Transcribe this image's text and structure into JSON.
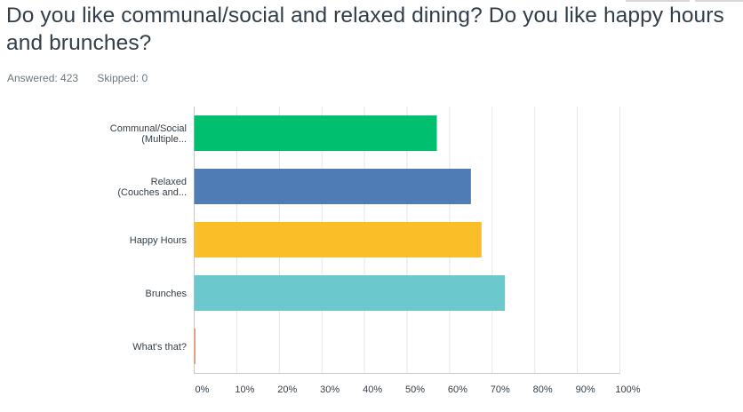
{
  "question": {
    "title": "Do you like communal/social and relaxed dining? Do you like happy hours and brunches?",
    "answered_label": "Answered: 423",
    "skipped_label": "Skipped: 0"
  },
  "colors": {
    "title": "#333e48",
    "meta": "#6b787f",
    "grid": "#e6e6e6",
    "axis": "#c8c8c8"
  },
  "chart_data": {
    "type": "bar",
    "orientation": "horizontal",
    "categories": [
      [
        "Communal/Social",
        "(Multiple..."
      ],
      [
        "Relaxed",
        "(Couches and..."
      ],
      [
        "Happy Hours"
      ],
      [
        "Brunches"
      ],
      [
        "What's that?"
      ]
    ],
    "values": [
      57,
      65,
      67.5,
      73,
      0.2
    ],
    "bar_colors": [
      "#00bf6f",
      "#507cb6",
      "#f9be28",
      "#6bc8cd",
      "#ff8b4f"
    ],
    "xlim": [
      0,
      100
    ],
    "xticks": [
      0,
      10,
      20,
      30,
      40,
      50,
      60,
      70,
      80,
      90,
      100
    ],
    "xtick_labels": [
      "0%",
      "10%",
      "20%",
      "30%",
      "40%",
      "50%",
      "60%",
      "70%",
      "80%",
      "90%",
      "100%"
    ],
    "grid": true,
    "title": "",
    "xlabel": "",
    "ylabel": ""
  }
}
